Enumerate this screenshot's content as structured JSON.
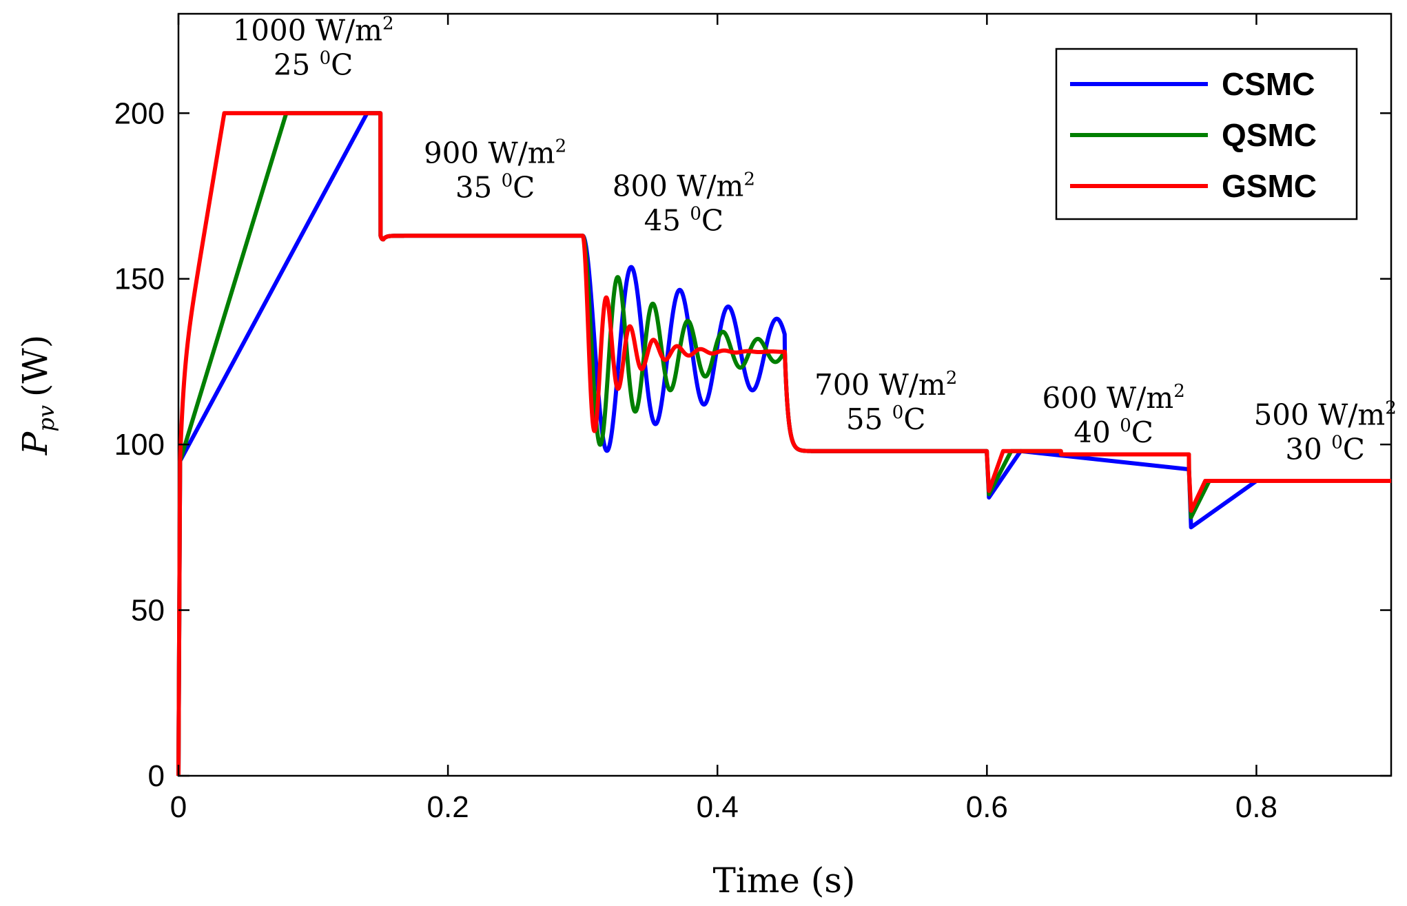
{
  "chart_data": {
    "type": "line",
    "title": "",
    "xlabel": "Time (s)",
    "ylabel_main": "P",
    "ylabel_sub": "pv",
    "ylabel_unit": "(W)",
    "xlim": [
      0,
      0.9
    ],
    "ylim": [
      0,
      230
    ],
    "xticks": [
      0,
      0.2,
      0.4,
      0.6,
      0.8
    ],
    "xtick_labels": [
      "0",
      "0.2",
      "0.4",
      "0.6",
      "0.8"
    ],
    "yticks": [
      0,
      50,
      100,
      150,
      200
    ],
    "ytick_labels": [
      "0",
      "50",
      "100",
      "150",
      "200"
    ],
    "grid": false,
    "legend_position": "top-right",
    "annotations": [
      {
        "x": 0.1,
        "y": 222,
        "line1": "1000 W/m",
        "sup1": "2",
        "line2": "25 ",
        "sup2": "0",
        "unit2": "C"
      },
      {
        "x": 0.235,
        "y": 185,
        "line1": "900 W/m",
        "sup1": "2",
        "line2": "35 ",
        "sup2": "0",
        "unit2": "C"
      },
      {
        "x": 0.375,
        "y": 175,
        "line1": "800 W/m",
        "sup1": "2",
        "line2": "45 ",
        "sup2": "0",
        "unit2": "C"
      },
      {
        "x": 0.525,
        "y": 115,
        "line1": "700 W/m",
        "sup1": "2",
        "line2": "55 ",
        "sup2": "0",
        "unit2": "C"
      },
      {
        "x": 0.694,
        "y": 111,
        "line1": "600 W/m",
        "sup1": "2",
        "line2": "40 ",
        "sup2": "0",
        "unit2": "C"
      },
      {
        "x": 0.851,
        "y": 106,
        "line1": "500 W/m",
        "sup1": "2",
        "line2": "30 ",
        "sup2": "0",
        "unit2": "C"
      }
    ],
    "series": [
      {
        "name": "CSMC",
        "color": "#0000FF",
        "zeta": 0.05,
        "omega_p": 0.036,
        "ramp_end": 0.14,
        "dip2": 84,
        "dip3": 75,
        "settle2": 0.625,
        "settle3": 0.8
      },
      {
        "name": "QSMC",
        "color": "#007F00",
        "zeta": 0.07,
        "omega_p": 0.026,
        "ramp_end": 0.08,
        "dip2": 85,
        "dip3": 78,
        "settle2": 0.618,
        "settle3": 0.765
      },
      {
        "name": "GSMC",
        "color": "#FF0000",
        "zeta": 0.12,
        "omega_p": 0.0175,
        "ramp_end": 0.034,
        "dip2": 86,
        "dip3": 80,
        "settle2": 0.612,
        "settle3": 0.762
      }
    ],
    "steady_levels": [
      {
        "t_start": 0.0,
        "t_end": 0.15,
        "value": 200
      },
      {
        "t_start": 0.15,
        "t_end": 0.3,
        "value": 163
      },
      {
        "t_start": 0.3,
        "t_end": 0.45,
        "value": 128
      },
      {
        "t_start": 0.45,
        "t_end": 0.6,
        "value": 98
      },
      {
        "t_start": 0.6,
        "t_end": 0.75,
        "value": 97
      },
      {
        "t_start": 0.75,
        "t_end": 0.9,
        "value": 89
      }
    ]
  }
}
